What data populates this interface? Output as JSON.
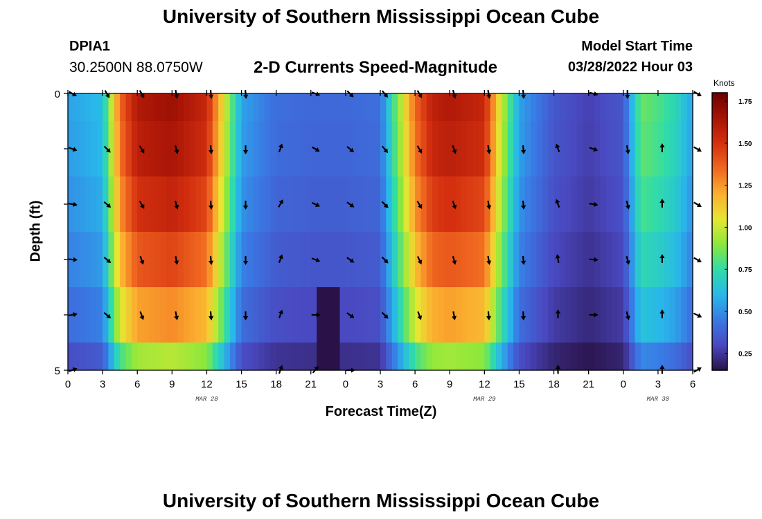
{
  "header": {
    "title": "University of Southern Mississippi Ocean Cube",
    "station": "DPIA1",
    "coordinates": "30.2500N  88.0750W",
    "subtitle": "2-D Currents Speed-Magnitude",
    "model_start_label": "Model Start Time",
    "model_start_value": "03/28/2022 Hour 03"
  },
  "footer": {
    "repeat_title": "University of Southern Mississippi Ocean Cube"
  },
  "chart_data": {
    "type": "heatmap",
    "title": "2-D Currents Speed-Magnitude",
    "xlabel": "Forecast Time(Z)",
    "ylabel": "Depth (ft)",
    "x_tick_labels": [
      "0",
      "3",
      "6",
      "9",
      "12",
      "15",
      "18",
      "21",
      "0",
      "3",
      "6",
      "9",
      "12",
      "15",
      "18",
      "21",
      "0",
      "3",
      "6"
    ],
    "x_hours": [
      0,
      3,
      6,
      9,
      12,
      15,
      18,
      21,
      24,
      27,
      30,
      33,
      36,
      39,
      42,
      45,
      48,
      51,
      54
    ],
    "xlim": [
      0,
      54
    ],
    "y_tick_labels": [
      "0",
      "5"
    ],
    "ylim": [
      0,
      5
    ],
    "date_labels": [
      {
        "label": "MAR 28",
        "hour": 12
      },
      {
        "label": "MAR 29",
        "hour": 36
      },
      {
        "label": "MAR 30",
        "hour": 51
      }
    ],
    "colorbar": {
      "unit": "Knots",
      "ticks": [
        "0.25",
        "0.50",
        "0.75",
        "1.00",
        "1.25",
        "1.50",
        "1.75"
      ],
      "min": 0.15,
      "max": 1.8,
      "colors": [
        "#2a1248",
        "#4a48c0",
        "#3a78e4",
        "#28b8ea",
        "#30dca8",
        "#8ae83c",
        "#e6e632",
        "#fbb030",
        "#f06820",
        "#d43010",
        "#a81406",
        "#6c0202"
      ]
    },
    "profile_hours": [
      0,
      1.5,
      3,
      4.5,
      6,
      9,
      12,
      13.5,
      15,
      18,
      21,
      24,
      27,
      30,
      31.5,
      33,
      36,
      37.5,
      39,
      42,
      45,
      48,
      49.5,
      51,
      52.5,
      54
    ],
    "profile_speeds": [
      0.55,
      0.58,
      0.62,
      1.35,
      1.62,
      1.68,
      1.55,
      1.05,
      0.55,
      0.42,
      0.4,
      0.4,
      0.42,
      1.35,
      1.58,
      1.62,
      1.55,
      1.0,
      0.55,
      0.35,
      0.28,
      0.35,
      0.85,
      0.8,
      0.72,
      0.55
    ],
    "depth_layers": [
      0,
      1,
      2,
      3,
      4,
      5
    ],
    "depth_factors": [
      1.0,
      0.98,
      0.93,
      0.86,
      0.76,
      0.58
    ],
    "anomaly": {
      "hour_from": 21.5,
      "hour_to": 23.5,
      "depth_from": 4,
      "depth_to": 5,
      "speed": 0.12
    },
    "arrow_hours": [
      0,
      3,
      6,
      9,
      12,
      15,
      18,
      21,
      24,
      27,
      30,
      33,
      36,
      39,
      42,
      45,
      48,
      51,
      54
    ],
    "arrow_directions_deg": [
      [
        120,
        150,
        150,
        170,
        175,
        175,
        null,
        110,
        135,
        140,
        150,
        165,
        170,
        175,
        null,
        105,
        180,
        null,
        120
      ],
      [
        110,
        135,
        150,
        165,
        175,
        180,
        20,
        120,
        130,
        140,
        150,
        160,
        170,
        175,
        340,
        110,
        170,
        0,
        120
      ],
      [
        100,
        130,
        150,
        165,
        175,
        180,
        30,
        115,
        125,
        135,
        150,
        160,
        170,
        175,
        340,
        100,
        165,
        0,
        120
      ],
      [
        95,
        130,
        160,
        170,
        175,
        180,
        20,
        110,
        125,
        135,
        155,
        165,
        170,
        175,
        350,
        95,
        165,
        0,
        120
      ],
      [
        80,
        130,
        160,
        170,
        175,
        180,
        20,
        90,
        125,
        135,
        160,
        170,
        175,
        178,
        0,
        90,
        165,
        0,
        115
      ],
      [
        70,
        null,
        null,
        null,
        null,
        null,
        20,
        40,
        90,
        null,
        null,
        null,
        null,
        null,
        0,
        null,
        null,
        0,
        60
      ]
    ]
  }
}
